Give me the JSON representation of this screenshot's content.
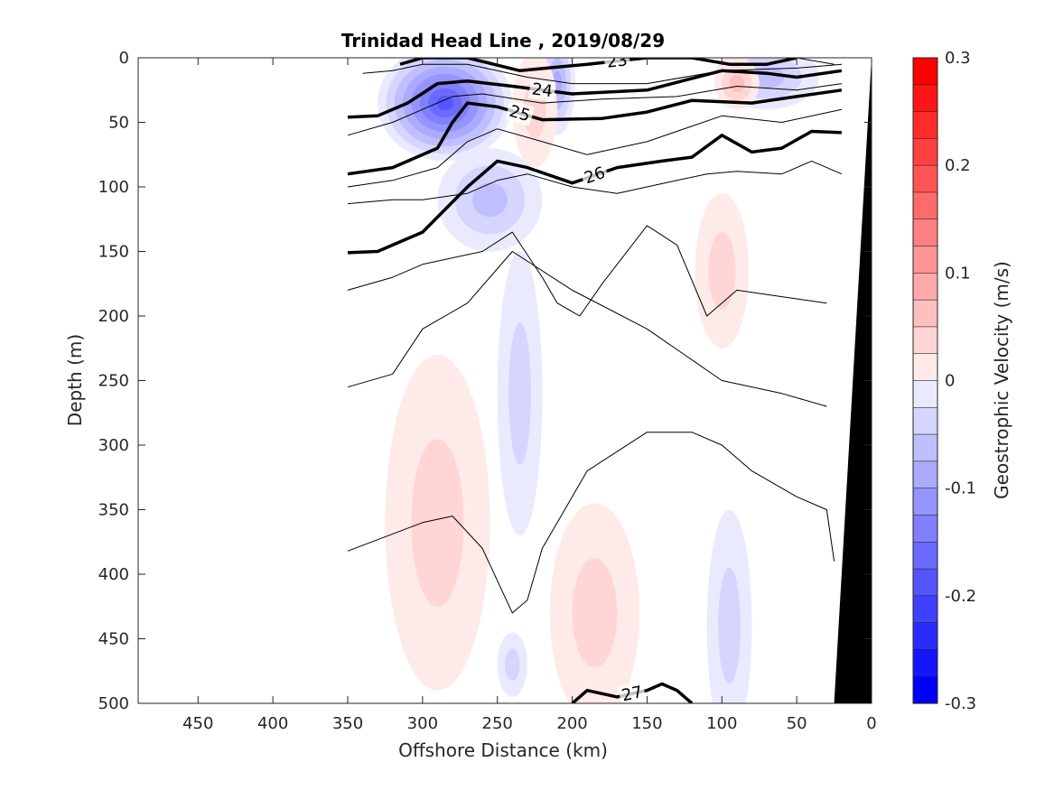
{
  "chart_data": {
    "type": "heatmap",
    "title": "Trinidad Head Line , 2019/08/29",
    "xlabel": "Offshore Distance (km)",
    "ylabel": "Depth (m)",
    "colorbar_label": "Geostrophic Velocity (m/s)",
    "xlim": [
      490,
      0
    ],
    "ylim": [
      500,
      0
    ],
    "x_reversed": true,
    "y_reversed": true,
    "x_ticks": [
      450,
      400,
      350,
      300,
      250,
      200,
      150,
      100,
      50,
      0
    ],
    "y_ticks": [
      0,
      50,
      100,
      150,
      200,
      250,
      300,
      350,
      400,
      450,
      500
    ],
    "colorbar": {
      "min": -0.3,
      "max": 0.3,
      "ticks": [
        0.3,
        0.2,
        0.1,
        0,
        -0.1,
        -0.2,
        -0.3
      ],
      "levels": 24,
      "colormap": "blue-white-red",
      "neg_color": "#0000ff",
      "pos_color": "#ff0000"
    },
    "velocity_blobs": [
      {
        "x": 285,
        "depth": 35,
        "rx": 45,
        "ry": 45,
        "v": -0.2
      },
      {
        "x": 255,
        "depth": 110,
        "rx": 35,
        "ry": 40,
        "v": -0.08
      },
      {
        "x": 235,
        "depth": 260,
        "rx": 15,
        "ry": 110,
        "v": -0.05
      },
      {
        "x": 210,
        "depth": 20,
        "rx": 12,
        "ry": 40,
        "v": -0.1
      },
      {
        "x": 70,
        "depth": 15,
        "rx": 35,
        "ry": 25,
        "v": -0.08
      },
      {
        "x": 95,
        "depth": 440,
        "rx": 15,
        "ry": 90,
        "v": -0.05
      },
      {
        "x": 240,
        "depth": 470,
        "rx": 10,
        "ry": 25,
        "v": -0.04
      },
      {
        "x": 225,
        "depth": 40,
        "rx": 15,
        "ry": 45,
        "v": 0.05
      },
      {
        "x": 90,
        "depth": 20,
        "rx": 15,
        "ry": 20,
        "v": 0.08
      },
      {
        "x": 100,
        "depth": 165,
        "rx": 18,
        "ry": 60,
        "v": 0.05
      },
      {
        "x": 290,
        "depth": 360,
        "rx": 35,
        "ry": 130,
        "v": 0.05
      },
      {
        "x": 185,
        "depth": 430,
        "rx": 30,
        "ry": 85,
        "v": 0.06
      }
    ],
    "isopycnals": [
      {
        "label": "",
        "bold": false,
        "x": [
          300,
          250,
          200,
          150,
          100,
          50,
          25
        ],
        "depth": [
          0,
          0,
          0,
          0,
          0,
          0,
          5
        ]
      },
      {
        "label": "23",
        "bold": true,
        "x": [
          315,
          300,
          270,
          235,
          190,
          150,
          120,
          95,
          70,
          50
        ],
        "depth": [
          5,
          0,
          0,
          10,
          5,
          0,
          0,
          5,
          5,
          0
        ]
      },
      {
        "label": "",
        "bold": false,
        "x": [
          340,
          320,
          300,
          270,
          250,
          230,
          200,
          150,
          100,
          50,
          20
        ],
        "depth": [
          12,
          10,
          5,
          5,
          10,
          15,
          20,
          20,
          10,
          8,
          5
        ]
      },
      {
        "label": "24",
        "bold": true,
        "x": [
          350,
          330,
          310,
          290,
          270,
          240,
          200,
          150,
          100,
          70,
          50,
          20
        ],
        "depth": [
          46,
          45,
          35,
          20,
          18,
          22,
          28,
          25,
          10,
          12,
          15,
          10
        ]
      },
      {
        "label": "",
        "bold": false,
        "x": [
          350,
          320,
          300,
          280,
          260,
          220,
          180,
          130,
          90,
          50,
          20
        ],
        "depth": [
          60,
          50,
          40,
          30,
          28,
          35,
          32,
          30,
          22,
          25,
          20
        ]
      },
      {
        "label": "25",
        "bold": true,
        "x": [
          350,
          320,
          290,
          280,
          270,
          250,
          220,
          180,
          150,
          120,
          80,
          50,
          20
        ],
        "depth": [
          90,
          85,
          70,
          50,
          35,
          38,
          48,
          47,
          42,
          33,
          35,
          30,
          25
        ]
      },
      {
        "label": "",
        "bold": false,
        "x": [
          350,
          320,
          290,
          270,
          250,
          220,
          190,
          150,
          100,
          60,
          20
        ],
        "depth": [
          100,
          95,
          85,
          65,
          55,
          65,
          75,
          65,
          45,
          50,
          40
        ]
      },
      {
        "label": "26",
        "bold": true,
        "x": [
          350,
          330,
          300,
          270,
          250,
          230,
          200,
          170,
          140,
          120,
          100,
          80,
          60,
          40,
          20
        ],
        "depth": [
          151,
          150,
          135,
          100,
          80,
          85,
          97,
          85,
          80,
          77,
          60,
          73,
          70,
          57,
          58
        ]
      },
      {
        "label": "",
        "bold": false,
        "x": [
          350,
          320,
          300,
          270,
          250,
          230,
          200,
          170,
          130,
          110,
          90,
          60,
          40,
          20
        ],
        "depth": [
          113,
          110,
          110,
          105,
          95,
          90,
          100,
          105,
          95,
          90,
          88,
          90,
          80,
          90
        ]
      },
      {
        "label": "",
        "bold": false,
        "x": [
          350,
          320,
          300,
          260,
          240,
          220,
          210,
          195,
          180,
          150,
          130,
          110,
          90,
          60,
          30
        ],
        "depth": [
          180,
          170,
          160,
          150,
          135,
          170,
          190,
          200,
          175,
          130,
          145,
          200,
          180,
          185,
          190
        ]
      },
      {
        "label": "",
        "bold": false,
        "x": [
          350,
          320,
          300,
          270,
          240,
          200,
          150,
          100,
          60,
          30
        ],
        "depth": [
          255,
          245,
          210,
          190,
          150,
          180,
          210,
          250,
          260,
          270
        ]
      },
      {
        "label": "",
        "bold": false,
        "x": [
          350,
          300,
          280,
          260,
          240,
          230,
          220,
          190,
          150,
          120,
          100,
          80,
          50,
          30,
          25
        ],
        "depth": [
          382,
          360,
          355,
          380,
          430,
          420,
          380,
          320,
          290,
          290,
          300,
          320,
          340,
          350,
          390
        ]
      },
      {
        "label": "27",
        "bold": true,
        "x": [
          200,
          190,
          170,
          150,
          140,
          130,
          120
        ],
        "depth": [
          500,
          490,
          495,
          490,
          485,
          490,
          500
        ]
      }
    ],
    "seafloor": {
      "x": [
        0,
        25,
        0
      ],
      "depth": [
        0,
        500,
        500
      ]
    }
  }
}
